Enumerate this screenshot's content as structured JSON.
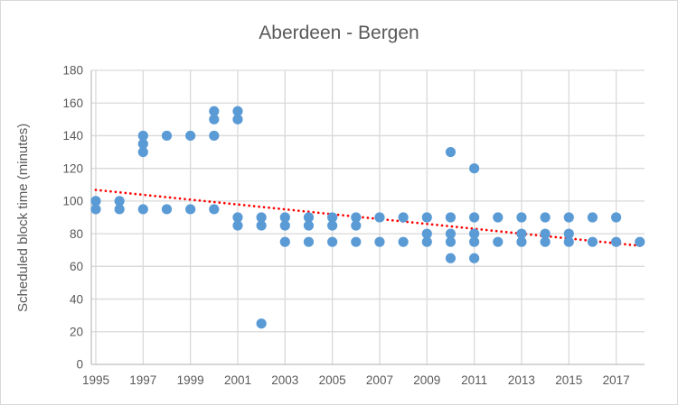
{
  "chart": {
    "title": "Aberdeen - Bergen",
    "y_axis_title": "Scheduled block time (minutes)"
  },
  "chart_data": {
    "type": "scatter",
    "title": "Aberdeen - Bergen",
    "xlabel": "",
    "ylabel": "Scheduled block time (minutes)",
    "xlim": [
      1994.81,
      2018.2
    ],
    "ylim": [
      0,
      180
    ],
    "x_ticks": [
      1995,
      1997,
      1999,
      2001,
      2003,
      2005,
      2007,
      2009,
      2011,
      2013,
      2015,
      2017
    ],
    "y_ticks": [
      0,
      20,
      40,
      60,
      80,
      100,
      120,
      140,
      160,
      180
    ],
    "grid": true,
    "legend": "none",
    "series": [
      {
        "name": "Scheduled block time",
        "points": [
          [
            1995,
            100
          ],
          [
            1995,
            95
          ],
          [
            1996,
            100
          ],
          [
            1996,
            95
          ],
          [
            1997,
            140
          ],
          [
            1997,
            135
          ],
          [
            1997,
            130
          ],
          [
            1997,
            95
          ],
          [
            1998,
            140
          ],
          [
            1998,
            95
          ],
          [
            1999,
            140
          ],
          [
            1999,
            95
          ],
          [
            2000,
            155
          ],
          [
            2000,
            150
          ],
          [
            2000,
            140
          ],
          [
            2000,
            95
          ],
          [
            2001,
            155
          ],
          [
            2001,
            150
          ],
          [
            2001,
            90
          ],
          [
            2001,
            85
          ],
          [
            2002,
            90
          ],
          [
            2002,
            85
          ],
          [
            2002,
            25
          ],
          [
            2003,
            90
          ],
          [
            2003,
            85
          ],
          [
            2003,
            75
          ],
          [
            2004,
            90
          ],
          [
            2004,
            85
          ],
          [
            2004,
            75
          ],
          [
            2005,
            90
          ],
          [
            2005,
            85
          ],
          [
            2005,
            75
          ],
          [
            2006,
            90
          ],
          [
            2006,
            85
          ],
          [
            2006,
            75
          ],
          [
            2007,
            90
          ],
          [
            2007,
            75
          ],
          [
            2008,
            90
          ],
          [
            2008,
            75
          ],
          [
            2009,
            90
          ],
          [
            2009,
            80
          ],
          [
            2009,
            75
          ],
          [
            2010,
            130
          ],
          [
            2010,
            90
          ],
          [
            2010,
            80
          ],
          [
            2010,
            75
          ],
          [
            2010,
            65
          ],
          [
            2011,
            120
          ],
          [
            2011,
            90
          ],
          [
            2011,
            80
          ],
          [
            2011,
            75
          ],
          [
            2011,
            65
          ],
          [
            2012,
            90
          ],
          [
            2012,
            75
          ],
          [
            2013,
            90
          ],
          [
            2013,
            80
          ],
          [
            2013,
            75
          ],
          [
            2014,
            90
          ],
          [
            2014,
            80
          ],
          [
            2014,
            75
          ],
          [
            2015,
            90
          ],
          [
            2015,
            80
          ],
          [
            2015,
            75
          ],
          [
            2016,
            90
          ],
          [
            2016,
            75
          ],
          [
            2017,
            90
          ],
          [
            2017,
            75
          ],
          [
            2018,
            75
          ]
        ]
      }
    ],
    "trendline": {
      "style": "dotted",
      "start": {
        "x": 1995,
        "y": 106.8
      },
      "end": {
        "x": 2018.15,
        "y": 72.4
      }
    },
    "colors": {
      "point": "#5b9bd5",
      "trend": "#ff0000",
      "grid": "#d9d9d9",
      "axis": "#bfbfbf",
      "text": "#595959"
    }
  }
}
